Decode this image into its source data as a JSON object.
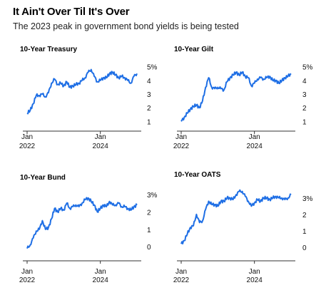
{
  "header": {
    "title": "It Ain't Over Til It's Over",
    "subtitle": "The 2023 peak in government bond yields is being tested"
  },
  "colors": {
    "line": "#1f6fe5",
    "axis": "#333333"
  },
  "chart_data": [
    {
      "type": "line",
      "title": "10-Year Treasury",
      "y_tick_labels": [
        "1",
        "2",
        "3",
        "4",
        "5%"
      ],
      "y_tick_values": [
        1,
        2,
        3,
        4,
        5
      ],
      "ylim": [
        0.6,
        5.3
      ],
      "x_ticks": [
        {
          "label": [
            "Jan",
            "2022"
          ],
          "t": 0
        },
        {
          "label": [
            "Jan",
            "2024"
          ],
          "t": 24
        }
      ],
      "x": [
        0,
        1,
        2,
        3,
        4,
        5,
        6,
        7,
        8,
        9,
        10,
        11,
        12,
        13,
        14,
        15,
        16,
        17,
        18,
        19,
        20,
        21,
        22,
        23,
        24,
        25,
        26,
        27,
        28,
        29,
        30,
        31,
        32,
        33,
        34,
        35,
        36
      ],
      "values": [
        1.6,
        1.8,
        2.3,
        2.9,
        2.9,
        3.0,
        2.8,
        3.1,
        3.8,
        4.1,
        3.7,
        3.8,
        3.6,
        3.9,
        3.5,
        3.6,
        3.7,
        3.8,
        4.0,
        4.2,
        4.6,
        4.8,
        4.3,
        3.9,
        4.0,
        4.2,
        4.2,
        4.5,
        4.6,
        4.4,
        4.2,
        4.3,
        4.2,
        4.0,
        3.8,
        4.3,
        4.5
      ]
    },
    {
      "type": "line",
      "title": "10-Year Gilt",
      "y_tick_labels": [
        "1",
        "2",
        "3",
        "4",
        "5%"
      ],
      "y_tick_values": [
        1,
        2,
        3,
        4,
        5
      ],
      "ylim": [
        0.6,
        5.3
      ],
      "x_ticks": [
        {
          "label": [
            "Jan",
            "2022"
          ],
          "t": 0
        },
        {
          "label": [
            "Jan",
            "2024"
          ],
          "t": 24
        }
      ],
      "x": [
        0,
        1,
        2,
        3,
        4,
        5,
        6,
        7,
        8,
        9,
        10,
        11,
        12,
        13,
        14,
        15,
        16,
        17,
        18,
        19,
        20,
        21,
        22,
        23,
        24,
        25,
        26,
        27,
        28,
        29,
        30,
        31,
        32,
        33,
        34,
        35,
        36
      ],
      "values": [
        1.0,
        1.3,
        1.6,
        1.9,
        2.1,
        2.2,
        2.0,
        2.5,
        3.5,
        4.2,
        3.5,
        3.4,
        3.5,
        3.4,
        3.3,
        3.9,
        4.2,
        4.4,
        4.6,
        4.4,
        4.6,
        4.3,
        4.2,
        3.6,
        3.8,
        4.1,
        4.2,
        4.1,
        4.2,
        4.3,
        4.0,
        4.0,
        3.8,
        4.0,
        4.2,
        4.3,
        4.5
      ]
    },
    {
      "type": "line",
      "title": "10-Year Bund",
      "y_tick_labels": [
        "0",
        "1",
        "2",
        "3%"
      ],
      "y_tick_values": [
        0,
        1,
        2,
        3
      ],
      "ylim": [
        -0.4,
        3.2
      ],
      "x_ticks": [
        {
          "label": [
            "Jan",
            "2022"
          ],
          "t": 0
        },
        {
          "label": [
            "Jan",
            "2024"
          ],
          "t": 24
        }
      ],
      "x": [
        0,
        1,
        2,
        3,
        4,
        5,
        6,
        7,
        8,
        9,
        10,
        11,
        12,
        13,
        14,
        15,
        16,
        17,
        18,
        19,
        20,
        21,
        22,
        23,
        24,
        25,
        26,
        27,
        28,
        29,
        30,
        31,
        32,
        33,
        34,
        35,
        36
      ],
      "values": [
        -0.1,
        0.1,
        0.5,
        0.9,
        1.0,
        1.5,
        1.0,
        1.1,
        1.6,
        2.2,
        2.0,
        2.2,
        2.1,
        2.5,
        2.2,
        2.3,
        2.4,
        2.3,
        2.5,
        2.7,
        2.8,
        2.6,
        2.4,
        2.0,
        2.2,
        2.4,
        2.3,
        2.6,
        2.4,
        2.4,
        2.5,
        2.3,
        2.3,
        2.2,
        2.1,
        2.3,
        2.4
      ]
    },
    {
      "type": "line",
      "title": "10-Year OATS",
      "y_tick_labels": [
        "0",
        "1",
        "2",
        "3%"
      ],
      "y_tick_values": [
        0,
        1,
        2,
        3
      ],
      "ylim": [
        -0.4,
        3.6
      ],
      "x_ticks": [
        {
          "label": [
            "Jan",
            "2022"
          ],
          "t": 0
        },
        {
          "label": [
            "Jan",
            "2024"
          ],
          "t": 24
        }
      ],
      "x": [
        0,
        1,
        2,
        3,
        4,
        5,
        6,
        7,
        8,
        9,
        10,
        11,
        12,
        13,
        14,
        15,
        16,
        17,
        18,
        19,
        20,
        21,
        22,
        23,
        24,
        25,
        26,
        27,
        28,
        29,
        30,
        31,
        32,
        33,
        34,
        35,
        36
      ],
      "values": [
        0.2,
        0.4,
        0.8,
        1.2,
        1.3,
        2.0,
        1.5,
        1.6,
        2.3,
        2.8,
        2.6,
        2.6,
        2.5,
        2.8,
        2.8,
        3.0,
        3.0,
        2.9,
        3.2,
        3.4,
        3.4,
        3.1,
        2.8,
        2.5,
        2.7,
        2.9,
        2.8,
        3.0,
        3.0,
        2.9,
        3.0,
        3.1,
        3.0,
        3.0,
        2.9,
        3.0,
        3.2
      ]
    }
  ]
}
